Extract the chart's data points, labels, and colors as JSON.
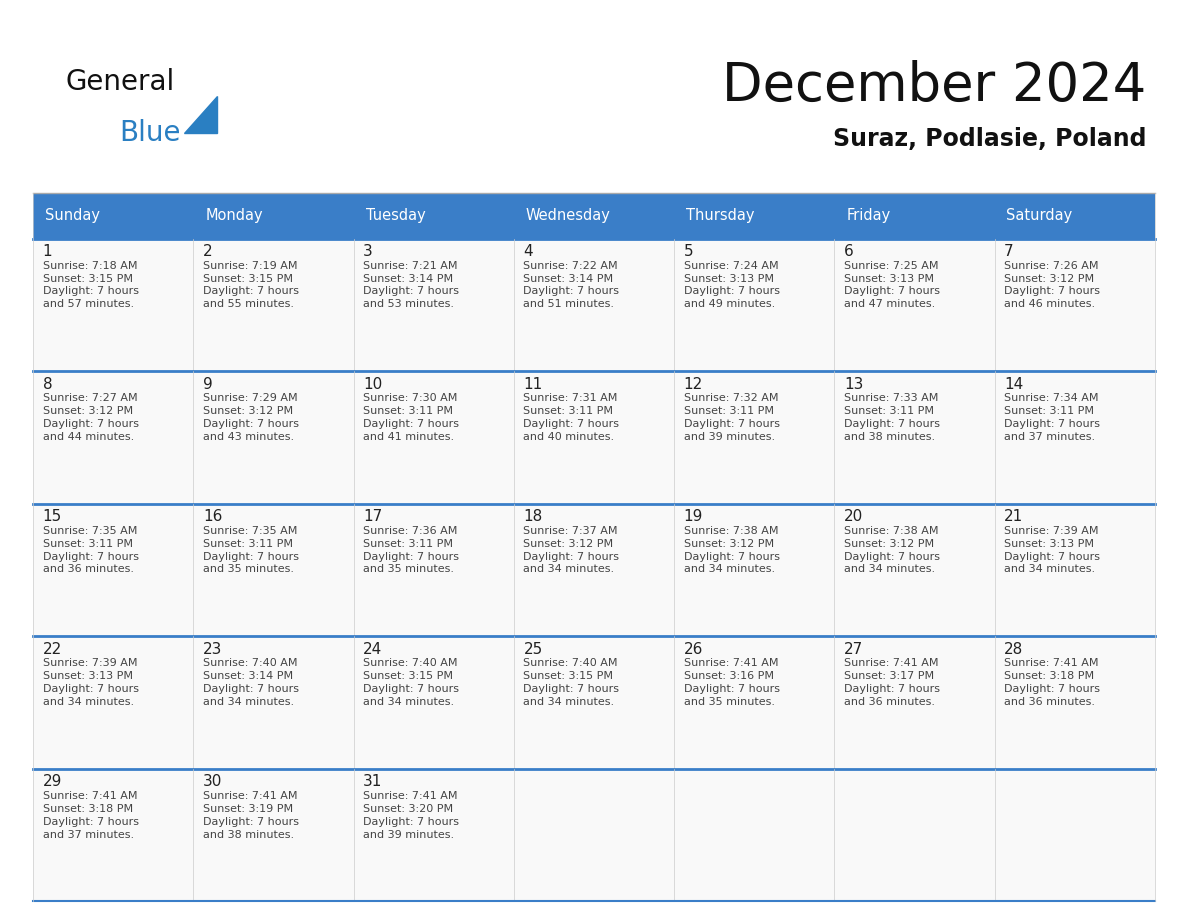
{
  "title": "December 2024",
  "subtitle": "Suraz, Podlasie, Poland",
  "header_color": "#3a7ec8",
  "header_text_color": "#ffffff",
  "cell_bg_color": "#f5f5f5",
  "text_color": "#333333",
  "days_of_week": [
    "Sunday",
    "Monday",
    "Tuesday",
    "Wednesday",
    "Thursday",
    "Friday",
    "Saturday"
  ],
  "weeks": [
    [
      {
        "day": 1,
        "sunrise": "7:18 AM",
        "sunset": "3:15 PM",
        "daylight": "7 hours and 57 minutes."
      },
      {
        "day": 2,
        "sunrise": "7:19 AM",
        "sunset": "3:15 PM",
        "daylight": "7 hours and 55 minutes."
      },
      {
        "day": 3,
        "sunrise": "7:21 AM",
        "sunset": "3:14 PM",
        "daylight": "7 hours and 53 minutes."
      },
      {
        "day": 4,
        "sunrise": "7:22 AM",
        "sunset": "3:14 PM",
        "daylight": "7 hours and 51 minutes."
      },
      {
        "day": 5,
        "sunrise": "7:24 AM",
        "sunset": "3:13 PM",
        "daylight": "7 hours and 49 minutes."
      },
      {
        "day": 6,
        "sunrise": "7:25 AM",
        "sunset": "3:13 PM",
        "daylight": "7 hours and 47 minutes."
      },
      {
        "day": 7,
        "sunrise": "7:26 AM",
        "sunset": "3:12 PM",
        "daylight": "7 hours and 46 minutes."
      }
    ],
    [
      {
        "day": 8,
        "sunrise": "7:27 AM",
        "sunset": "3:12 PM",
        "daylight": "7 hours and 44 minutes."
      },
      {
        "day": 9,
        "sunrise": "7:29 AM",
        "sunset": "3:12 PM",
        "daylight": "7 hours and 43 minutes."
      },
      {
        "day": 10,
        "sunrise": "7:30 AM",
        "sunset": "3:11 PM",
        "daylight": "7 hours and 41 minutes."
      },
      {
        "day": 11,
        "sunrise": "7:31 AM",
        "sunset": "3:11 PM",
        "daylight": "7 hours and 40 minutes."
      },
      {
        "day": 12,
        "sunrise": "7:32 AM",
        "sunset": "3:11 PM",
        "daylight": "7 hours and 39 minutes."
      },
      {
        "day": 13,
        "sunrise": "7:33 AM",
        "sunset": "3:11 PM",
        "daylight": "7 hours and 38 minutes."
      },
      {
        "day": 14,
        "sunrise": "7:34 AM",
        "sunset": "3:11 PM",
        "daylight": "7 hours and 37 minutes."
      }
    ],
    [
      {
        "day": 15,
        "sunrise": "7:35 AM",
        "sunset": "3:11 PM",
        "daylight": "7 hours and 36 minutes."
      },
      {
        "day": 16,
        "sunrise": "7:35 AM",
        "sunset": "3:11 PM",
        "daylight": "7 hours and 35 minutes."
      },
      {
        "day": 17,
        "sunrise": "7:36 AM",
        "sunset": "3:11 PM",
        "daylight": "7 hours and 35 minutes."
      },
      {
        "day": 18,
        "sunrise": "7:37 AM",
        "sunset": "3:12 PM",
        "daylight": "7 hours and 34 minutes."
      },
      {
        "day": 19,
        "sunrise": "7:38 AM",
        "sunset": "3:12 PM",
        "daylight": "7 hours and 34 minutes."
      },
      {
        "day": 20,
        "sunrise": "7:38 AM",
        "sunset": "3:12 PM",
        "daylight": "7 hours and 34 minutes."
      },
      {
        "day": 21,
        "sunrise": "7:39 AM",
        "sunset": "3:13 PM",
        "daylight": "7 hours and 34 minutes."
      }
    ],
    [
      {
        "day": 22,
        "sunrise": "7:39 AM",
        "sunset": "3:13 PM",
        "daylight": "7 hours and 34 minutes."
      },
      {
        "day": 23,
        "sunrise": "7:40 AM",
        "sunset": "3:14 PM",
        "daylight": "7 hours and 34 minutes."
      },
      {
        "day": 24,
        "sunrise": "7:40 AM",
        "sunset": "3:15 PM",
        "daylight": "7 hours and 34 minutes."
      },
      {
        "day": 25,
        "sunrise": "7:40 AM",
        "sunset": "3:15 PM",
        "daylight": "7 hours and 34 minutes."
      },
      {
        "day": 26,
        "sunrise": "7:41 AM",
        "sunset": "3:16 PM",
        "daylight": "7 hours and 35 minutes."
      },
      {
        "day": 27,
        "sunrise": "7:41 AM",
        "sunset": "3:17 PM",
        "daylight": "7 hours and 36 minutes."
      },
      {
        "day": 28,
        "sunrise": "7:41 AM",
        "sunset": "3:18 PM",
        "daylight": "7 hours and 36 minutes."
      }
    ],
    [
      {
        "day": 29,
        "sunrise": "7:41 AM",
        "sunset": "3:18 PM",
        "daylight": "7 hours and 37 minutes."
      },
      {
        "day": 30,
        "sunrise": "7:41 AM",
        "sunset": "3:19 PM",
        "daylight": "7 hours and 38 minutes."
      },
      {
        "day": 31,
        "sunrise": "7:41 AM",
        "sunset": "3:20 PM",
        "daylight": "7 hours and 39 minutes."
      },
      null,
      null,
      null,
      null
    ]
  ]
}
